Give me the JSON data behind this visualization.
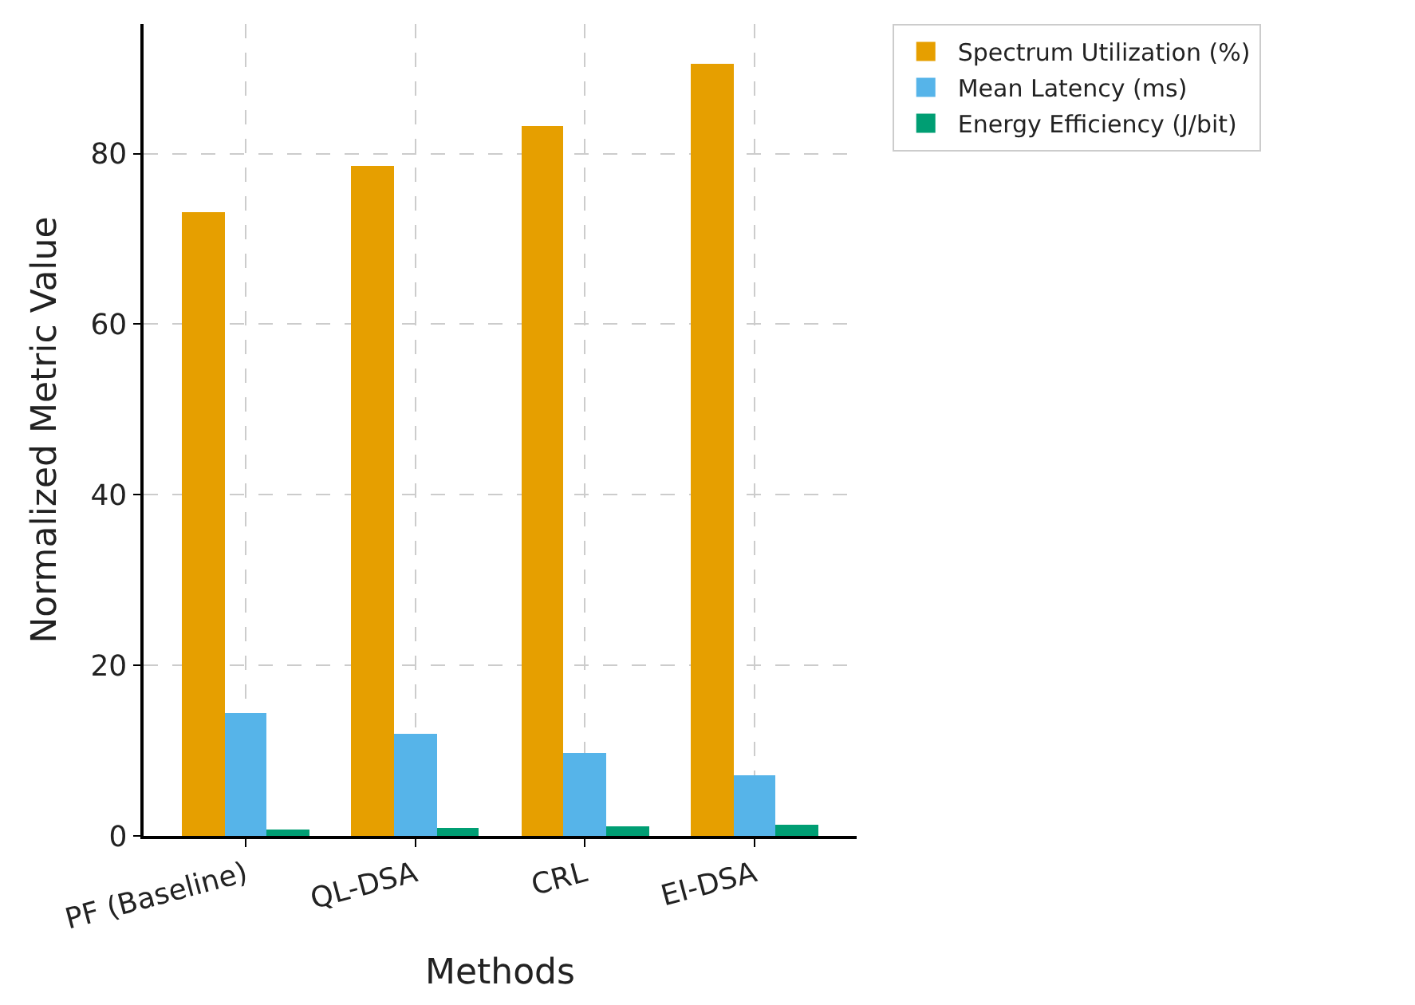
{
  "chart_data": {
    "type": "bar",
    "xlabel": "Methods",
    "ylabel": "Normalized Metric Value",
    "categories": [
      "PF (Baseline)",
      "QL-DSA",
      "CRL",
      "EI-DSA"
    ],
    "series": [
      {
        "name": "Spectrum Utilization (%)",
        "color": "#e69f00",
        "values": [
          73.1,
          78.6,
          83.2,
          90.5
        ]
      },
      {
        "name": "Mean Latency (ms)",
        "color": "#56b4e9",
        "values": [
          14.4,
          12.0,
          9.7,
          7.1
        ]
      },
      {
        "name": "Energy Efficiency (J/bit)",
        "color": "#009e73",
        "values": [
          0.8,
          1.0,
          1.1,
          1.3
        ]
      }
    ],
    "ylim": [
      0,
      95.2
    ],
    "yticks": [
      0,
      20,
      40,
      60,
      80
    ],
    "grid": true,
    "legend": "top right"
  }
}
